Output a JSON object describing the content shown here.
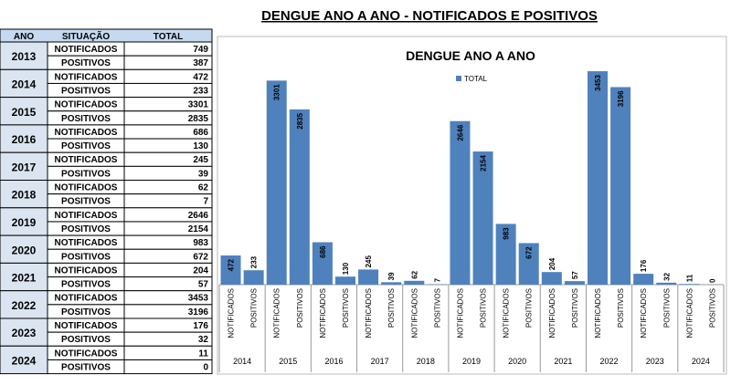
{
  "title": "DENGUE ANO A ANO - NOTIFICADOS E POSITIVOS",
  "table": {
    "header": [
      "ANO",
      "SITUAÇÃO",
      "TOTAL"
    ],
    "rows": [
      {
        "year": "2013",
        "rows": [
          [
            "NOTIFICADOS",
            749
          ],
          [
            "POSITIVOS",
            387
          ]
        ]
      },
      {
        "year": "2014",
        "rows": [
          [
            "NOTIFICADOS",
            472
          ],
          [
            "POSITIVOS",
            233
          ]
        ]
      },
      {
        "year": "2015",
        "rows": [
          [
            "NOTIFICADOS",
            3301
          ],
          [
            "POSITIVOS",
            2835
          ]
        ]
      },
      {
        "year": "2016",
        "rows": [
          [
            "NOTIFICADOS",
            686
          ],
          [
            "POSITIVOS",
            130
          ]
        ]
      },
      {
        "year": "2017",
        "rows": [
          [
            "NOTIFICADOS",
            245
          ],
          [
            "POSITIVOS",
            39
          ]
        ]
      },
      {
        "year": "2018",
        "rows": [
          [
            "NOTIFICADOS",
            62
          ],
          [
            "POSITIVOS",
            7
          ]
        ]
      },
      {
        "year": "2019",
        "rows": [
          [
            "NOTIFICADOS",
            2646
          ],
          [
            "POSITIVOS",
            2154
          ]
        ]
      },
      {
        "year": "2020",
        "rows": [
          [
            "NOTIFICADOS",
            983
          ],
          [
            "POSITIVOS",
            672
          ]
        ]
      },
      {
        "year": "2021",
        "rows": [
          [
            "NOTIFICADOS",
            204
          ],
          [
            "POSITIVOS",
            57
          ]
        ]
      },
      {
        "year": "2022",
        "rows": [
          [
            "NOTIFICADOS",
            3453
          ],
          [
            "POSITIVOS",
            3196
          ]
        ]
      },
      {
        "year": "2023",
        "rows": [
          [
            "NOTIFICADOS",
            176
          ],
          [
            "POSITIVOS",
            32
          ]
        ]
      },
      {
        "year": "2024",
        "rows": [
          [
            "NOTIFICADOS",
            11
          ],
          [
            "POSITIVOS",
            0
          ]
        ]
      }
    ]
  },
  "chart_data": {
    "type": "bar",
    "title": "DENGUE ANO A ANO",
    "groups": [
      "2014",
      "2015",
      "2016",
      "2017",
      "2018",
      "2019",
      "2020",
      "2021",
      "2022",
      "2023",
      "2024"
    ],
    "categories": [
      "NOTIFICADOS",
      "POSITIVOS",
      "NOTIFICADOS",
      "POSITIVOS",
      "NOTIFICADOS",
      "POSITIVOS",
      "NOTIFICADOS",
      "POSITIVOS",
      "NOTIFICADOS",
      "POSITIVOS",
      "NOTIFICADOS",
      "POSITIVOS",
      "NOTIFICADOS",
      "POSITIVOS",
      "NOTIFICADOS",
      "POSITIVOS",
      "NOTIFICADOS",
      "POSITIVOS",
      "NOTIFICADOS",
      "POSITIVOS",
      "NOTIFICADOS",
      "POSITIVOS"
    ],
    "series": [
      {
        "name": "TOTAL",
        "color": "#4f81bd",
        "values": [
          472,
          233,
          3301,
          2835,
          686,
          130,
          245,
          39,
          62,
          7,
          2646,
          2154,
          983,
          672,
          204,
          57,
          3453,
          3196,
          176,
          32,
          11,
          0
        ]
      }
    ],
    "ylim": [
      0,
      4000
    ]
  }
}
